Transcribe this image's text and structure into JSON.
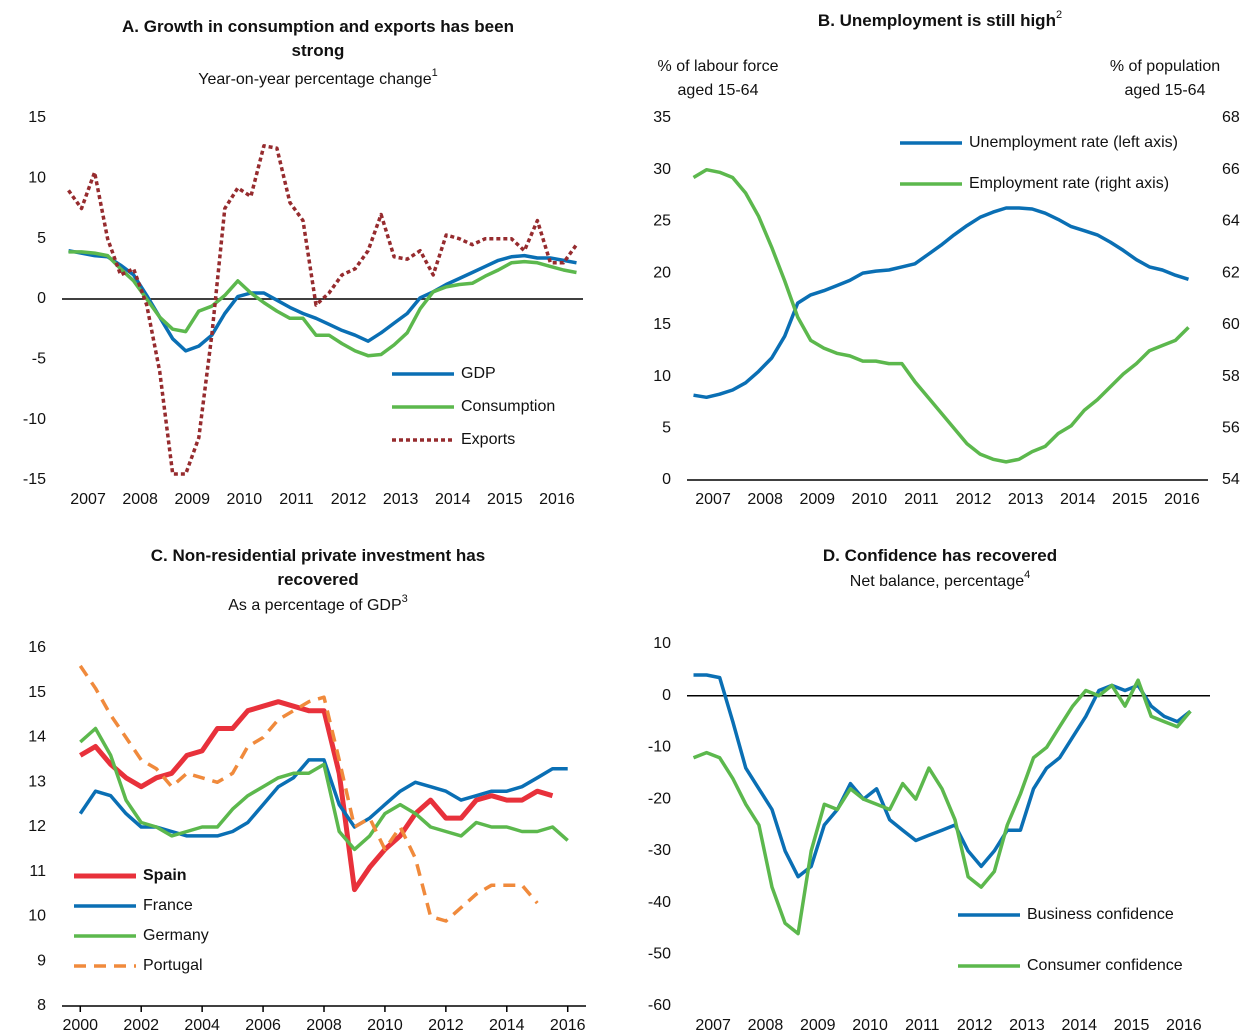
{
  "chart_data": [
    {
      "type": "line",
      "title": [
        "A. Growth in consumption and exports has been",
        "strong"
      ],
      "subtitle": "Year-on-year percentage change",
      "subtitle_sup": "1",
      "x": [
        2007.125,
        2007.375,
        2007.625,
        2007.875,
        2008.125,
        2008.375,
        2008.625,
        2008.875,
        2009.125,
        2009.375,
        2009.625,
        2009.875,
        2010.125,
        2010.375,
        2010.625,
        2010.875,
        2011.125,
        2011.375,
        2011.625,
        2011.875,
        2012.125,
        2012.375,
        2012.625,
        2012.875,
        2013.125,
        2013.375,
        2013.625,
        2013.875,
        2014.125,
        2014.375,
        2014.625,
        2014.875,
        2015.125,
        2015.375,
        2015.625,
        2015.875,
        2016.125,
        2016.375,
        2016.625,
        2016.875
      ],
      "xlim": [
        2007,
        2017
      ],
      "xticks": [
        {
          "value": 2007.5,
          "label": "2007"
        },
        {
          "value": 2008.5,
          "label": "2008"
        },
        {
          "value": 2009.5,
          "label": "2009"
        },
        {
          "value": 2010.5,
          "label": "2010"
        },
        {
          "value": 2011.5,
          "label": "2011"
        },
        {
          "value": 2012.5,
          "label": "2012"
        },
        {
          "value": 2013.5,
          "label": "2013"
        },
        {
          "value": 2014.5,
          "label": "2014"
        },
        {
          "value": 2015.5,
          "label": "2015"
        },
        {
          "value": 2016.5,
          "label": "2016"
        }
      ],
      "ylim": [
        -15,
        15
      ],
      "yticks": [
        15,
        10,
        5,
        0,
        -5,
        -10,
        -15
      ],
      "legend": "lower right",
      "series": [
        {
          "name": "GDP",
          "color": "#0a6fb4",
          "style": "solid",
          "values": [
            4.0,
            3.8,
            3.6,
            3.5,
            2.8,
            2.0,
            0.3,
            -1.5,
            -3.3,
            -4.3,
            -3.9,
            -3.0,
            -1.2,
            0.2,
            0.5,
            0.5,
            -0.1,
            -0.7,
            -1.2,
            -1.6,
            -2.1,
            -2.6,
            -3.0,
            -3.5,
            -2.8,
            -2.0,
            -1.2,
            0.1,
            0.6,
            1.2,
            1.7,
            2.2,
            2.7,
            3.2,
            3.5,
            3.6,
            3.4,
            3.4,
            3.2,
            3.0
          ]
        },
        {
          "name": "Consumption",
          "color": "#5cb84d",
          "style": "solid",
          "values": [
            3.9,
            3.9,
            3.8,
            3.6,
            2.5,
            1.5,
            0.0,
            -1.5,
            -2.5,
            -2.7,
            -1.0,
            -0.6,
            0.3,
            1.5,
            0.5,
            -0.3,
            -1.0,
            -1.6,
            -1.6,
            -3.0,
            -3.0,
            -3.7,
            -4.3,
            -4.7,
            -4.6,
            -3.8,
            -2.8,
            -0.8,
            0.6,
            1.0,
            1.2,
            1.3,
            1.9,
            2.4,
            3.0,
            3.1,
            3.0,
            2.7,
            2.4,
            2.2
          ]
        },
        {
          "name": "Exports",
          "color": "#962b2e",
          "style": "dotted",
          "values": [
            9.0,
            7.5,
            10.5,
            5.0,
            2.0,
            2.5,
            -0.5,
            -6,
            -14.5,
            -14.5,
            -11.5,
            -3,
            7.5,
            9.2,
            8.5,
            12.7,
            12.5,
            8,
            6.5,
            -0.5,
            0.5,
            2,
            2.5,
            4,
            7,
            3.5,
            3.3,
            4,
            2,
            5.3,
            5,
            4.5,
            5,
            5,
            5,
            4,
            6.5,
            3,
            3,
            4.5
          ]
        }
      ]
    },
    {
      "type": "line",
      "title": [
        "B. Unemployment is still high"
      ],
      "title_sup": "2",
      "y_label": [
        "% of labour force",
        "aged 15-64"
      ],
      "y2_label": [
        "% of population",
        "aged 15-64"
      ],
      "x": [
        2007.125,
        2007.375,
        2007.625,
        2007.875,
        2008.125,
        2008.375,
        2008.625,
        2008.875,
        2009.125,
        2009.375,
        2009.625,
        2009.875,
        2010.125,
        2010.375,
        2010.625,
        2010.875,
        2011.125,
        2011.375,
        2011.625,
        2011.875,
        2012.125,
        2012.375,
        2012.625,
        2012.875,
        2013.125,
        2013.375,
        2013.625,
        2013.875,
        2014.125,
        2014.375,
        2014.625,
        2014.875,
        2015.125,
        2015.375,
        2015.625,
        2015.875,
        2016.125,
        2016.375,
        2016.625
      ],
      "xlim": [
        2007,
        2017
      ],
      "xticks": [
        {
          "value": 2007.5,
          "label": "2007"
        },
        {
          "value": 2008.5,
          "label": "2008"
        },
        {
          "value": 2009.5,
          "label": "2009"
        },
        {
          "value": 2010.5,
          "label": "2010"
        },
        {
          "value": 2011.5,
          "label": "2011"
        },
        {
          "value": 2012.5,
          "label": "2012"
        },
        {
          "value": 2013.5,
          "label": "2013"
        },
        {
          "value": 2014.5,
          "label": "2014"
        },
        {
          "value": 2015.5,
          "label": "2015"
        },
        {
          "value": 2016.5,
          "label": "2016"
        }
      ],
      "ylim": [
        0,
        35
      ],
      "yticks": [
        35,
        30,
        25,
        20,
        15,
        10,
        5,
        0
      ],
      "y2lim": [
        54,
        68
      ],
      "y2ticks": [
        68,
        66,
        64,
        62,
        60,
        58,
        56,
        54
      ],
      "legend": "upper right",
      "series": [
        {
          "name": "Unemployment rate (left axis)",
          "color": "#0a6fb4",
          "style": "solid",
          "values": [
            8.2,
            8.0,
            8.3,
            8.7,
            9.4,
            10.5,
            11.8,
            13.9,
            17.1,
            17.9,
            18.3,
            18.8,
            19.3,
            20.0,
            20.2,
            20.3,
            20.6,
            20.9,
            21.8,
            22.7,
            23.7,
            24.6,
            25.4,
            25.9,
            26.3,
            26.3,
            26.2,
            25.8,
            25.2,
            24.5,
            24.1,
            23.7,
            23.0,
            22.2,
            21.3,
            20.6,
            20.3,
            19.8,
            19.4
          ]
        },
        {
          "name": "Employment rate (right axis)",
          "color": "#5cb84d",
          "style": "solid",
          "axis": "y2",
          "values": [
            65.7,
            66.0,
            65.9,
            65.7,
            65.1,
            64.2,
            63.0,
            61.7,
            60.3,
            59.4,
            59.1,
            58.9,
            58.8,
            58.6,
            58.6,
            58.5,
            58.5,
            57.8,
            57.2,
            56.6,
            56.0,
            55.4,
            55.0,
            54.8,
            54.7,
            54.8,
            55.1,
            55.3,
            55.8,
            56.1,
            56.7,
            57.1,
            57.6,
            58.1,
            58.5,
            59.0,
            59.2,
            59.4,
            59.9
          ]
        }
      ]
    },
    {
      "type": "line",
      "title": [
        "C. Non-residential private investment has",
        "recovered"
      ],
      "subtitle": "As a percentage of GDP",
      "subtitle_sup": "3",
      "x": [
        2000,
        2000.5,
        2001,
        2001.5,
        2002,
        2002.5,
        2003,
        2003.5,
        2004,
        2004.5,
        2005,
        2005.5,
        2006,
        2006.5,
        2007,
        2007.5,
        2008,
        2008.5,
        2009,
        2009.5,
        2010,
        2010.5,
        2011,
        2011.5,
        2012,
        2012.5,
        2013,
        2013.5,
        2014,
        2014.5,
        2015,
        2015.5,
        2016
      ],
      "xlim": [
        1999.4,
        2016.6
      ],
      "xticks": [
        2000,
        2002,
        2004,
        2006,
        2008,
        2010,
        2012,
        2014,
        2016
      ],
      "ylim": [
        8,
        16
      ],
      "yticks": [
        16,
        15,
        14,
        13,
        12,
        11,
        10,
        9,
        8
      ],
      "legend": "lower left",
      "series": [
        {
          "name": "Spain",
          "color": "#e8313b",
          "style": "solid",
          "width": 5,
          "bold": true,
          "values": [
            13.6,
            13.8,
            13.4,
            13.1,
            12.9,
            13.1,
            13.2,
            13.6,
            13.7,
            14.2,
            14.2,
            14.6,
            14.7,
            14.8,
            14.7,
            14.6,
            14.6,
            13.2,
            10.6,
            11.1,
            11.5,
            11.8,
            12.3,
            12.6,
            12.2,
            12.2,
            12.6,
            12.7,
            12.6,
            12.6,
            12.8,
            12.7,
            null
          ]
        },
        {
          "name": "France",
          "color": "#0a6fb4",
          "style": "solid",
          "values": [
            12.3,
            12.8,
            12.7,
            12.3,
            12.0,
            12.0,
            11.9,
            11.8,
            11.8,
            11.8,
            11.9,
            12.1,
            12.5,
            12.9,
            13.1,
            13.5,
            13.5,
            12.5,
            12.0,
            12.2,
            12.5,
            12.8,
            13.0,
            12.9,
            12.8,
            12.6,
            12.7,
            12.8,
            12.8,
            12.9,
            13.1,
            13.3,
            13.3
          ]
        },
        {
          "name": "Germany",
          "color": "#5cb84d",
          "style": "solid",
          "values": [
            13.9,
            14.2,
            13.6,
            12.6,
            12.1,
            12.0,
            11.8,
            11.9,
            12.0,
            12.0,
            12.4,
            12.7,
            12.9,
            13.1,
            13.2,
            13.2,
            13.4,
            11.9,
            11.5,
            11.8,
            12.3,
            12.5,
            12.3,
            12.0,
            11.9,
            11.8,
            12.1,
            12.0,
            12.0,
            11.9,
            11.9,
            12.0,
            11.7
          ]
        },
        {
          "name": "Portugal",
          "color": "#f08a3c",
          "style": "dashed",
          "values": [
            15.6,
            15.1,
            14.5,
            14.0,
            13.5,
            13.3,
            12.9,
            13.2,
            13.1,
            13.0,
            13.2,
            13.8,
            14.0,
            14.4,
            14.6,
            14.8,
            14.9,
            13.5,
            12.0,
            12.2,
            11.5,
            12.0,
            11.3,
            10.0,
            9.9,
            10.2,
            10.5,
            10.7,
            10.7,
            10.7,
            10.3,
            null,
            null
          ]
        }
      ]
    },
    {
      "type": "line",
      "title": [
        "D. Confidence has recovered"
      ],
      "subtitle": "Net balance, percentage",
      "subtitle_sup": "4",
      "x": [
        2007.125,
        2007.375,
        2007.625,
        2007.875,
        2008.125,
        2008.375,
        2008.625,
        2008.875,
        2009.125,
        2009.375,
        2009.625,
        2009.875,
        2010.125,
        2010.375,
        2010.625,
        2010.875,
        2011.125,
        2011.375,
        2011.625,
        2011.875,
        2012.125,
        2012.375,
        2012.625,
        2012.875,
        2013.125,
        2013.375,
        2013.625,
        2013.875,
        2014.125,
        2014.375,
        2014.625,
        2014.875,
        2015.125,
        2015.375,
        2015.625,
        2015.875,
        2016.125,
        2016.375,
        2016.625
      ],
      "xlim": [
        2007,
        2017
      ],
      "xticks": [
        {
          "value": 2007.5,
          "label": "2007"
        },
        {
          "value": 2008.5,
          "label": "2008"
        },
        {
          "value": 2009.5,
          "label": "2009"
        },
        {
          "value": 2010.5,
          "label": "2010"
        },
        {
          "value": 2011.5,
          "label": "2011"
        },
        {
          "value": 2012.5,
          "label": "2012"
        },
        {
          "value": 2013.5,
          "label": "2013"
        },
        {
          "value": 2014.5,
          "label": "2014"
        },
        {
          "value": 2015.5,
          "label": "2015"
        },
        {
          "value": 2016.5,
          "label": "2016"
        }
      ],
      "ylim": [
        -60,
        10
      ],
      "yticks": [
        10,
        0,
        -10,
        -20,
        -30,
        -40,
        -50,
        -60
      ],
      "legend": "lower right",
      "series": [
        {
          "name": "Business confidence",
          "color": "#0a6fb4",
          "style": "solid",
          "values": [
            4,
            4,
            3.5,
            -5,
            -14,
            -18,
            -22,
            -30,
            -35,
            -33,
            -25,
            -22,
            -17,
            -20,
            -18,
            -24,
            -26,
            -28,
            -27,
            -26,
            -25,
            -30,
            -33,
            -30,
            -26,
            -26,
            -18,
            -14,
            -12,
            -8,
            -4,
            1,
            2,
            1,
            2,
            -2,
            -4,
            -5,
            -3
          ]
        },
        {
          "name": "Consumer confidence",
          "color": "#5cb84d",
          "style": "solid",
          "values": [
            -12,
            -11,
            -12,
            -16,
            -21,
            -25,
            -37,
            -44,
            -46,
            -30,
            -21,
            -22,
            -18,
            -20,
            -21,
            -22,
            -17,
            -20,
            -14,
            -18,
            -24,
            -35,
            -37,
            -34,
            -25,
            -19,
            -12,
            -10,
            -6,
            -2,
            1,
            0,
            2,
            -2,
            3,
            -4,
            -5,
            -6,
            -3
          ]
        }
      ]
    }
  ]
}
